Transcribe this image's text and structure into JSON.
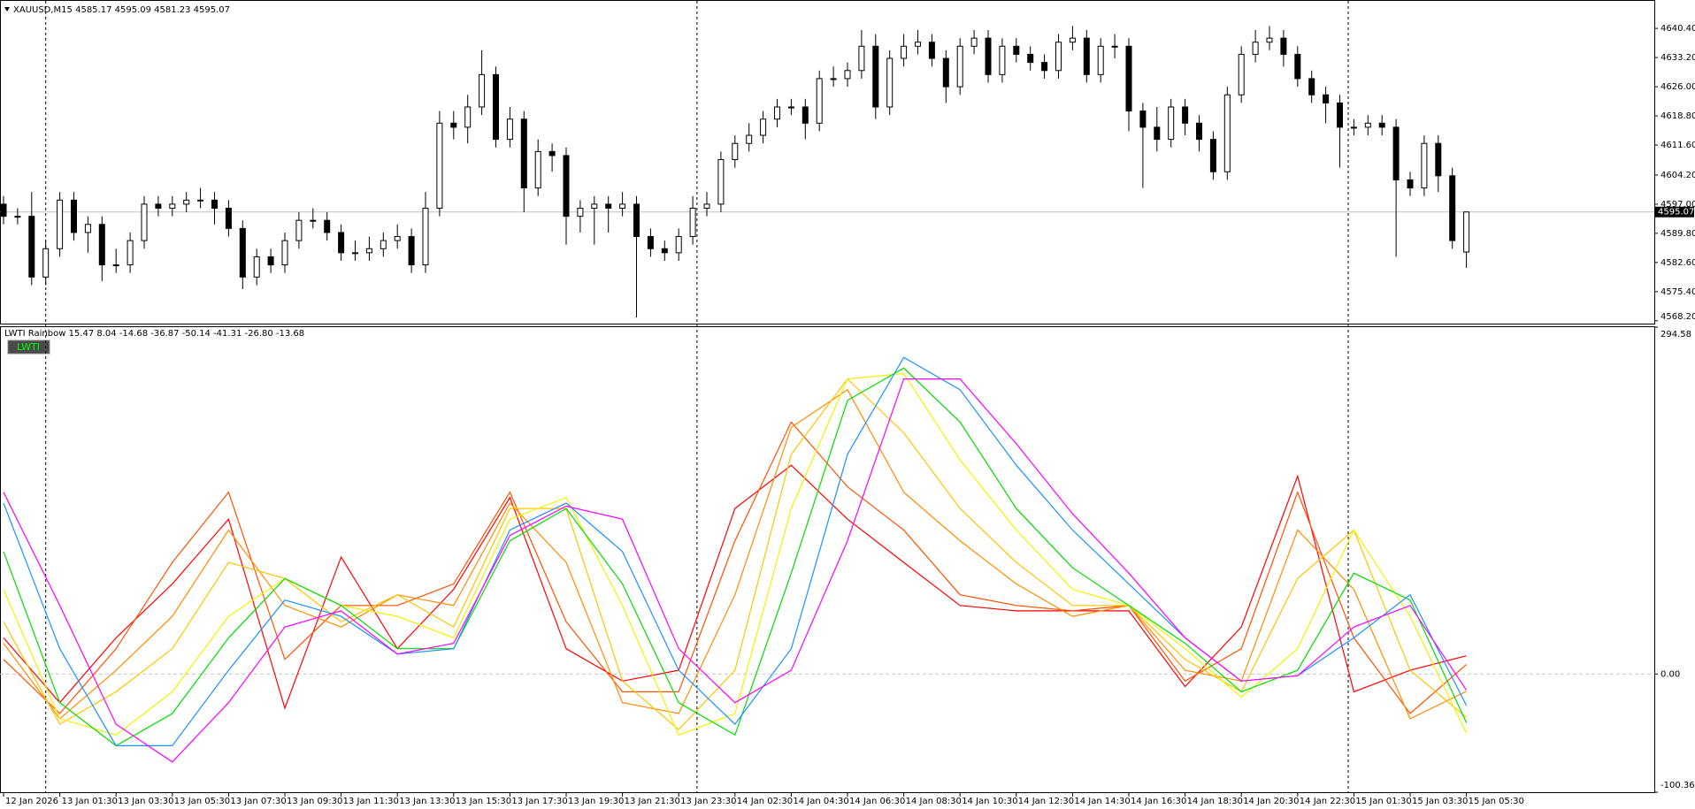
{
  "chart_data": [
    {
      "type": "candlestick",
      "title": "XAUUSD,M15  4585.17 4595.09 4581.23 4595.07",
      "open": [
        4597,
        4594,
        4594,
        4579,
        4586,
        4598,
        4590,
        4592,
        4582,
        4582,
        4588,
        4597,
        4596,
        4597,
        4598,
        4598,
        4596,
        4591,
        4579,
        4584,
        4582,
        4588,
        4593,
        4593,
        4590,
        4585,
        4585,
        4586,
        4588,
        4589,
        4582,
        4596,
        4617,
        4616,
        4621,
        4629,
        4613,
        4618,
        4601,
        4610,
        4609,
        4594,
        4596,
        4597,
        4596,
        4597,
        4589,
        4586,
        4585,
        4589,
        4596,
        4597,
        4608,
        4612,
        4614,
        4618,
        4621,
        4621,
        4617,
        4628,
        4628,
        4630,
        4636,
        4621,
        4633,
        4636,
        4637,
        4633,
        4626,
        4636,
        4638,
        4629,
        4636,
        4634,
        4632,
        4630,
        4637,
        4638,
        4629,
        4636,
        4636,
        4620,
        4616,
        4613,
        4621,
        4617,
        4613,
        4605,
        4624,
        4634,
        4637,
        4638,
        4634,
        4628,
        4624,
        4622,
        4616,
        4616,
        4617,
        4616,
        4603,
        4601,
        4612,
        4604,
        4585.17
      ],
      "high": [
        4599,
        4596,
        4600,
        4588,
        4600,
        4600,
        4594,
        4594,
        4586,
        4590,
        4599,
        4599,
        4599,
        4600,
        4601,
        4600,
        4598,
        4593,
        4586,
        4586,
        4590,
        4595,
        4596,
        4595,
        4592,
        4588,
        4589,
        4590,
        4592,
        4591,
        4600,
        4620,
        4620,
        4624,
        4635,
        4631,
        4621,
        4620,
        4613,
        4612,
        4611,
        4598,
        4599,
        4599,
        4600,
        4599,
        4591,
        4588,
        4591,
        4599,
        4600,
        4610,
        4614,
        4617,
        4620,
        4623,
        4623,
        4623,
        4630,
        4631,
        4632,
        4640,
        4639,
        4635,
        4639,
        4640,
        4639,
        4635,
        4638,
        4640,
        4640,
        4638,
        4638,
        4636,
        4634,
        4639,
        4641,
        4640,
        4638,
        4639,
        4638,
        4622,
        4621,
        4623,
        4623,
        4619,
        4615,
        4626,
        4636,
        4640,
        4641,
        4640,
        4636,
        4630,
        4626,
        4624,
        4618,
        4619,
        4619,
        4618,
        4605,
        4614,
        4614,
        4606,
        4595.09
      ],
      "low": [
        4592,
        4592,
        4577,
        4577,
        4584,
        4588,
        4585,
        4578,
        4580,
        4580,
        4586,
        4594,
        4594,
        4595,
        4596,
        4592,
        4589,
        4576,
        4577,
        4580,
        4580,
        4586,
        4591,
        4588,
        4583,
        4583,
        4583,
        4584,
        4586,
        4580,
        4580,
        4594,
        4613,
        4612,
        4619,
        4611,
        4611,
        4595,
        4599,
        4605,
        4587,
        4590,
        4587,
        4590,
        4594,
        4569,
        4584,
        4583,
        4583,
        4587,
        4594,
        4595,
        4606,
        4610,
        4612,
        4616,
        4619,
        4613,
        4615,
        4626,
        4626,
        4628,
        4618,
        4619,
        4631,
        4634,
        4631,
        4622,
        4624,
        4634,
        4627,
        4627,
        4632,
        4630,
        4628,
        4628,
        4635,
        4627,
        4627,
        4633,
        4615,
        4601,
        4610,
        4611,
        4614,
        4610,
        4603,
        4603,
        4622,
        4632,
        4635,
        4631,
        4626,
        4622,
        4617,
        4606,
        4614,
        4614,
        4614,
        4584,
        4599,
        4599,
        4600,
        4586,
        4581.23
      ],
      "close": [
        4594,
        4594,
        4579,
        4586,
        4598,
        4590,
        4592,
        4582,
        4582,
        4588,
        4597,
        4596,
        4597,
        4598,
        4598,
        4596,
        4591,
        4579,
        4584,
        4582,
        4588,
        4593,
        4593,
        4590,
        4585,
        4585,
        4586,
        4588,
        4589,
        4582,
        4596,
        4617,
        4616,
        4621,
        4629,
        4613,
        4618,
        4601,
        4610,
        4609,
        4594,
        4596,
        4597,
        4596,
        4597,
        4589,
        4586,
        4585,
        4589,
        4596,
        4597,
        4608,
        4612,
        4614,
        4618,
        4621,
        4621,
        4617,
        4628,
        4628,
        4630,
        4636,
        4621,
        4633,
        4636,
        4637,
        4633,
        4626,
        4636,
        4638,
        4629,
        4636,
        4634,
        4632,
        4630,
        4637,
        4638,
        4629,
        4636,
        4636,
        4620,
        4616,
        4613,
        4621,
        4617,
        4613,
        4605,
        4624,
        4634,
        4637,
        4638,
        4634,
        4628,
        4624,
        4622,
        4616,
        4616,
        4617,
        4616,
        4603,
        4601,
        4612,
        4604,
        4588,
        4595.07
      ],
      "ylim": [
        4567.5,
        4647.2
      ],
      "yticks": [
        {
          "value": 4640.4,
          "label": "4640.40"
        },
        {
          "value": 4633.2,
          "label": "4633.20"
        },
        {
          "value": 4626,
          "label": "4626.00"
        },
        {
          "value": 4618.8,
          "label": "4618.80"
        },
        {
          "value": 4611.6,
          "label": "4611.60"
        },
        {
          "value": 4604.2,
          "label": "4604.20"
        },
        {
          "value": 4597,
          "label": "4597.00"
        },
        {
          "value": 4589.8,
          "label": "4589.80"
        },
        {
          "value": 4582.6,
          "label": "4582.60"
        },
        {
          "value": 4575.4,
          "label": "4575.40"
        },
        {
          "value": 4568.2,
          "label": "4568.20"
        }
      ],
      "last_price": 4595.07,
      "up_color": "#ffffff",
      "down_color": "#000000",
      "period_separators": [
        3,
        49.3,
        95.6
      ]
    },
    {
      "type": "line",
      "title": "LWTI Rainbow 15.47 8.04 -14.68 -36.87 -50.14 -41.31 -26.80 -13.68",
      "button": "LWTI",
      "x": [
        0,
        4,
        8,
        12,
        16,
        20,
        24,
        28,
        32,
        36,
        40,
        44,
        48,
        52,
        56,
        60,
        64,
        68,
        72,
        76,
        80,
        84,
        88,
        92,
        96,
        100,
        104
      ],
      "series": [
        {
          "color": "#ff0000",
          "values": [
            30.7,
            -24.3,
            30.7,
            76.5,
            131.5,
            -28.9,
            99.4,
            21.5,
            71.9,
            149.8,
            21.5,
            -6.0,
            3.2,
            140.6,
            177.3,
            131.5,
            94.8,
            58.2,
            53.6,
            53.6,
            53.6,
            -10.6,
            39.9,
            168.1,
            -15.1,
            3.2,
            15.47
          ]
        },
        {
          "color": "#ff5000",
          "values": [
            12.4,
            -33.5,
            21.5,
            94.8,
            154.4,
            12.4,
            58.2,
            58.2,
            76.5,
            154.4,
            44.4,
            -15.1,
            -15.1,
            113.2,
            214.0,
            159.0,
            122.3,
            67.3,
            58.2,
            53.6,
            58.2,
            -6.0,
            21.5,
            154.4,
            30.7,
            -33.5,
            8.04
          ]
        },
        {
          "color": "#ff8c00",
          "values": [
            26.1,
            -38.0,
            3.2,
            49.0,
            122.3,
            58.2,
            39.9,
            67.3,
            58.2,
            145.2,
            94.8,
            -24.3,
            -33.5,
            67.3,
            209.4,
            241.4,
            154.4,
            113.2,
            76.5,
            49.0,
            58.2,
            3.2,
            -6.0,
            122.3,
            71.9,
            -38.0,
            -14.68
          ]
        },
        {
          "color": "#ffc400",
          "values": [
            44.4,
            -42.6,
            -15.1,
            21.5,
            94.8,
            81.1,
            44.4,
            67.3,
            39.9,
            140.6,
            140.6,
            -6.0,
            -47.2,
            3.2,
            186.5,
            250.6,
            204.8,
            140.6,
            94.8,
            58.2,
            58.2,
            12.4,
            -15.1,
            81.1,
            122.3,
            3.2,
            -36.87
          ]
        },
        {
          "color": "#f2f200",
          "values": [
            71.9,
            -38.0,
            -51.8,
            -15.1,
            49.0,
            81.1,
            58.2,
            49.0,
            30.7,
            131.5,
            149.8,
            58.2,
            -51.8,
            -33.5,
            140.6,
            250.6,
            255.2,
            181.9,
            122.3,
            71.9,
            58.2,
            21.5,
            -19.7,
            21.5,
            122.3,
            49.0,
            -50.14
          ]
        },
        {
          "color": "#00dd00",
          "values": [
            104.0,
            -24.3,
            -60.9,
            -33.5,
            30.7,
            81.1,
            58.2,
            21.5,
            21.5,
            113.2,
            140.6,
            76.5,
            -24.3,
            -51.8,
            85.7,
            232.3,
            259.8,
            214.0,
            140.6,
            90.2,
            58.2,
            26.1,
            -15.1,
            3.2,
            85.7,
            62.8,
            -41.31
          ]
        },
        {
          "color": "#1e90ff",
          "values": [
            145.2,
            21.5,
            -60.9,
            -60.9,
            3.2,
            62.8,
            49.0,
            17.0,
            21.5,
            122.3,
            145.2,
            104.0,
            3.2,
            -42.6,
            21.5,
            186.5,
            268.9,
            241.4,
            177.3,
            122.3,
            76.5,
            30.7,
            -6.0,
            -1.4,
            30.7,
            67.3,
            -26.8
          ]
        },
        {
          "color": "#ff00ff",
          "values": [
            154.4,
            58.2,
            -42.6,
            -74.7,
            -24.3,
            39.9,
            53.6,
            17.0,
            26.1,
            117.7,
            142.5,
            131.5,
            21.5,
            -24.3,
            3.2,
            113.2,
            250.6,
            250.6,
            195.6,
            136.1,
            85.7,
            30.7,
            -6.0,
            -1.4,
            39.9,
            58.2,
            -13.68
          ]
        }
      ],
      "ylim": [
        -100.36,
        294.58
      ],
      "yticks": [
        294.58,
        {
          "value": 0,
          "label": "0.00"
        },
        -100.36
      ],
      "zero_line": true,
      "xticks": [
        {
          "value": 0,
          "label": "12 Jan 2026"
        },
        {
          "value": 4,
          "label": "13 Jan 01:30"
        },
        {
          "value": 8,
          "label": "13 Jan 03:30"
        },
        {
          "value": 12,
          "label": "13 Jan 05:30"
        },
        {
          "value": 16,
          "label": "13 Jan 07:30"
        },
        {
          "value": 20,
          "label": "13 Jan 09:30"
        },
        {
          "value": 24,
          "label": "13 Jan 11:30"
        },
        {
          "value": 28,
          "label": "13 Jan 13:30"
        },
        {
          "value": 32,
          "label": "13 Jan 15:30"
        },
        {
          "value": 36,
          "label": "13 Jan 17:30"
        },
        {
          "value": 40,
          "label": "13 Jan 19:30"
        },
        {
          "value": 44,
          "label": "13 Jan 21:30"
        },
        {
          "value": 48,
          "label": "13 Jan 23:30"
        },
        {
          "value": 52,
          "label": "14 Jan 02:30"
        },
        {
          "value": 56,
          "label": "14 Jan 04:30"
        },
        {
          "value": 60,
          "label": "14 Jan 06:30"
        },
        {
          "value": 64,
          "label": "14 Jan 08:30"
        },
        {
          "value": 68,
          "label": "14 Jan 10:30"
        },
        {
          "value": 72,
          "label": "14 Jan 12:30"
        },
        {
          "value": 76,
          "label": "14 Jan 14:30"
        },
        {
          "value": 80,
          "label": "14 Jan 16:30"
        },
        {
          "value": 84,
          "label": "14 Jan 18:30"
        },
        {
          "value": 88,
          "label": "14 Jan 20:30"
        },
        {
          "value": 92,
          "label": "14 Jan 22:30"
        },
        {
          "value": 96,
          "label": "15 Jan 01:30"
        },
        {
          "value": 100,
          "label": "15 Jan 03:30"
        },
        {
          "value": 104,
          "label": "15 Jan 05:30"
        }
      ]
    }
  ]
}
